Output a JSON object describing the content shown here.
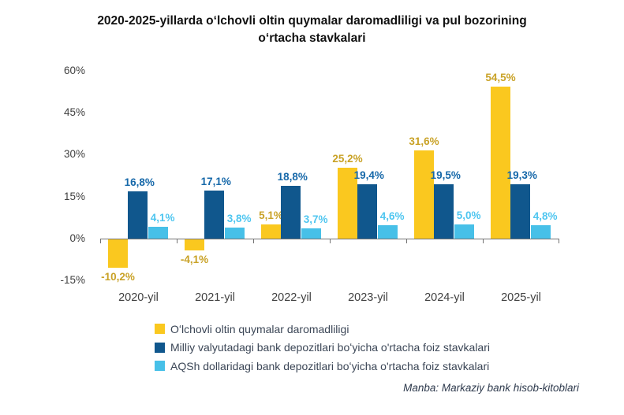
{
  "title": "2020-2025-yillarda oʻlchovli oltin quymalar daromadliligi va pul bozorining oʻrtacha stavkalari",
  "source_note": "Manba: Markaziy bank hisob-kitoblari",
  "chart_data": {
    "type": "bar",
    "title": "2020-2025-yillarda oʻlchovli oltin quymalar daromadliligi va pul bozorining oʻrtacha stavkalari",
    "categories": [
      "2020-yil",
      "2021-yil",
      "2022-yil",
      "2023-yil",
      "2024-yil",
      "2025-yil"
    ],
    "series": [
      {
        "name": "Oʻlchovli oltin quymalar daromadliligi",
        "color": "#FAC81F",
        "label_color": "#C9A227",
        "values": [
          -10.2,
          -4.1,
          5.1,
          25.2,
          31.6,
          54.5
        ],
        "labels": [
          "-10,2%",
          "-4,1%",
          "5,1%",
          "25,2%",
          "31,6%",
          "54,5%"
        ]
      },
      {
        "name": "Milliy valyutadagi bank depozitlari boʻyicha o'rtacha foiz stavkalari",
        "color": "#10578D",
        "label_color": "#1668A9",
        "values": [
          16.8,
          17.1,
          18.8,
          19.4,
          19.5,
          19.3
        ],
        "labels": [
          "16,8%",
          "17,1%",
          "18,8%",
          "19,4%",
          "19,5%",
          "19,3%"
        ]
      },
      {
        "name": "AQSh dollaridagi bank depozitlari boʻyicha o'rtacha foiz stavkalari",
        "color": "#47C0E8",
        "label_color": "#4FC6F0",
        "values": [
          4.1,
          3.8,
          3.7,
          4.6,
          5.0,
          4.8
        ],
        "labels": [
          "4,1%",
          "3,8%",
          "3,7%",
          "4,6%",
          "5,0%",
          "4,8%"
        ]
      }
    ],
    "y_axis": {
      "tick_labels": [
        "60%",
        "45%",
        "30%",
        "15%",
        "0%",
        "-15%"
      ],
      "tick_values": [
        60,
        45,
        30,
        15,
        0,
        -15
      ],
      "min": -15,
      "max": 60
    },
    "grid": false,
    "legend_position": "bottom-left",
    "xlabel": "",
    "ylabel": ""
  }
}
